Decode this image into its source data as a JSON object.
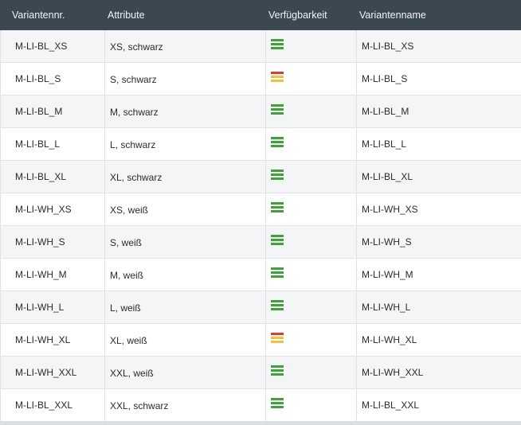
{
  "table": {
    "headers": [
      "Variantennr.",
      "Attribute",
      "Verfügbarkeit",
      "Variantenname"
    ],
    "rows": [
      {
        "nr": "M-LI-BL_XS",
        "attr": "XS, schwarz",
        "avail": "good",
        "name": "M-LI-BL_XS"
      },
      {
        "nr": "M-LI-BL_S",
        "attr": "S, schwarz",
        "avail": "low",
        "name": "M-LI-BL_S"
      },
      {
        "nr": "M-LI-BL_M",
        "attr": "M, schwarz",
        "avail": "good",
        "name": "M-LI-BL_M"
      },
      {
        "nr": "M-LI-BL_L",
        "attr": "L, schwarz",
        "avail": "good",
        "name": "M-LI-BL_L"
      },
      {
        "nr": "M-LI-BL_XL",
        "attr": "XL, schwarz",
        "avail": "good",
        "name": "M-LI-BL_XL"
      },
      {
        "nr": "M-LI-WH_XS",
        "attr": "XS, weiß",
        "avail": "good",
        "name": "M-LI-WH_XS"
      },
      {
        "nr": "M-LI-WH_S",
        "attr": "S, weiß",
        "avail": "good",
        "name": "M-LI-WH_S"
      },
      {
        "nr": "M-LI-WH_M",
        "attr": "M, weiß",
        "avail": "good",
        "name": "M-LI-WH_M"
      },
      {
        "nr": "M-LI-WH_L",
        "attr": "L, weiß",
        "avail": "good",
        "name": "M-LI-WH_L"
      },
      {
        "nr": "M-LI-WH_XL",
        "attr": "XL, weiß",
        "avail": "low",
        "name": "M-LI-WH_XL"
      },
      {
        "nr": "M-LI-WH_XXL",
        "attr": "XXL, weiß",
        "avail": "good",
        "name": "M-LI-WH_XXL"
      },
      {
        "nr": "M-LI-BL_XXL",
        "attr": "XXL, schwarz",
        "avail": "good",
        "name": "M-LI-BL_XXL"
      }
    ]
  },
  "colors": {
    "header_bg": "#3b4751",
    "avail_good": "#3ea43a",
    "avail_low_red": "#e03a32",
    "avail_low_yellow": "#f2c23a"
  }
}
